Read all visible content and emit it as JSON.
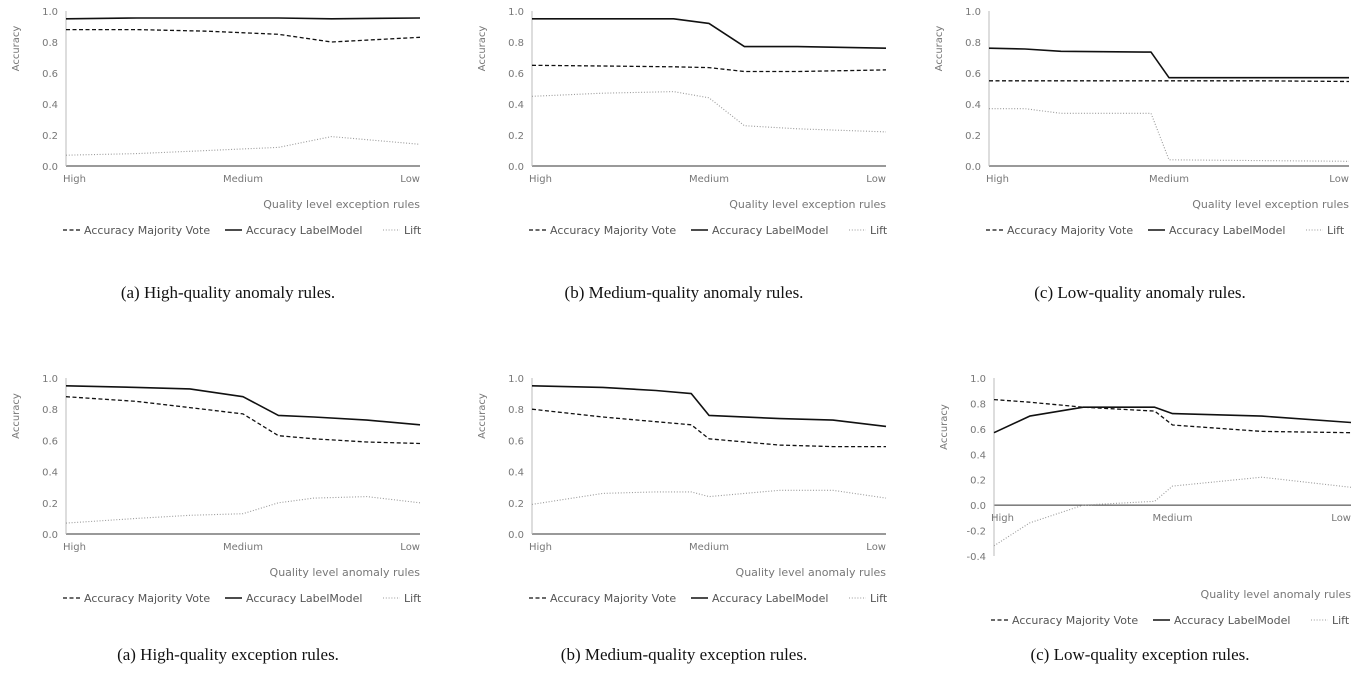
{
  "legend_labels": [
    "Accuracy Majority Vote",
    "Accuracy LabelModel",
    "Lift"
  ],
  "chart_data": [
    {
      "type": "line",
      "panel": "top-left",
      "caption": "(a) High-quality anomaly rules.",
      "ylabel": "Accuracy",
      "xlabel": "Quality level exception rules",
      "xticks": [
        "High",
        "Medium",
        "Low"
      ],
      "ylim": [
        0.0,
        1.0
      ],
      "yticks": [
        "0.0",
        "0.2",
        "0.4",
        "0.6",
        "0.8",
        "1.0"
      ],
      "x": [
        0,
        0.2,
        0.4,
        0.6,
        0.75,
        1.0
      ],
      "series": [
        {
          "name": "Accuracy Majority Vote",
          "style": "dashed",
          "values": [
            0.88,
            0.88,
            0.87,
            0.85,
            0.8,
            0.83
          ]
        },
        {
          "name": "Accuracy LabelModel",
          "style": "solid",
          "values": [
            0.95,
            0.955,
            0.955,
            0.955,
            0.95,
            0.955
          ]
        },
        {
          "name": "Lift",
          "style": "dotted",
          "values": [
            0.07,
            0.08,
            0.1,
            0.12,
            0.19,
            0.14
          ]
        }
      ],
      "grid": false,
      "legend": "bottom"
    },
    {
      "type": "line",
      "panel": "top-middle",
      "caption": "(b) Medium-quality anomaly rules.",
      "ylabel": "Accuracy",
      "xlabel": "Quality level exception rules",
      "xticks": [
        "High",
        "Medium",
        "Low"
      ],
      "ylim": [
        0.0,
        1.0
      ],
      "yticks": [
        "0.0",
        "0.2",
        "0.4",
        "0.6",
        "0.8",
        "1.0"
      ],
      "x": [
        0,
        0.2,
        0.4,
        0.5,
        0.6,
        0.75,
        1.0
      ],
      "series": [
        {
          "name": "Accuracy Majority Vote",
          "style": "dashed",
          "values": [
            0.65,
            0.645,
            0.64,
            0.635,
            0.61,
            0.61,
            0.62
          ]
        },
        {
          "name": "Accuracy LabelModel",
          "style": "solid",
          "values": [
            0.95,
            0.95,
            0.95,
            0.92,
            0.77,
            0.77,
            0.76
          ]
        },
        {
          "name": "Lift",
          "style": "dotted",
          "values": [
            0.45,
            0.47,
            0.48,
            0.44,
            0.26,
            0.24,
            0.22
          ]
        }
      ],
      "grid": false,
      "legend": "bottom"
    },
    {
      "type": "line",
      "panel": "top-right",
      "caption": "(c) Low-quality anomaly rules.",
      "ylabel": "Accuracy",
      "xlabel": "Quality level exception rules",
      "xticks": [
        "High",
        "Medium",
        "Low"
      ],
      "ylim": [
        0.0,
        1.0
      ],
      "yticks": [
        "0.0",
        "0.2",
        "0.4",
        "0.6",
        "0.8",
        "1.0"
      ],
      "x": [
        0,
        0.1,
        0.2,
        0.45,
        0.5,
        0.75,
        1.0
      ],
      "series": [
        {
          "name": "Accuracy Majority Vote",
          "style": "dashed",
          "values": [
            0.55,
            0.55,
            0.55,
            0.55,
            0.55,
            0.55,
            0.545
          ]
        },
        {
          "name": "Accuracy LabelModel",
          "style": "solid",
          "values": [
            0.76,
            0.755,
            0.74,
            0.735,
            0.57,
            0.57,
            0.57
          ]
        },
        {
          "name": "Lift",
          "style": "dotted",
          "values": [
            0.37,
            0.37,
            0.34,
            0.34,
            0.04,
            0.035,
            0.03
          ]
        }
      ],
      "grid": false,
      "legend": "bottom"
    },
    {
      "type": "line",
      "panel": "bottom-left",
      "caption": "(a) High-quality exception rules.",
      "ylabel": "Accuracy",
      "xlabel": "Quality level anomaly rules",
      "xticks": [
        "High",
        "Medium",
        "Low"
      ],
      "ylim": [
        0.0,
        1.0
      ],
      "yticks": [
        "0.0",
        "0.2",
        "0.4",
        "0.6",
        "0.8",
        "1.0"
      ],
      "x": [
        0,
        0.2,
        0.35,
        0.5,
        0.6,
        0.7,
        0.85,
        1.0
      ],
      "series": [
        {
          "name": "Accuracy Majority Vote",
          "style": "dashed",
          "values": [
            0.88,
            0.85,
            0.81,
            0.77,
            0.63,
            0.61,
            0.59,
            0.58
          ]
        },
        {
          "name": "Accuracy LabelModel",
          "style": "solid",
          "values": [
            0.95,
            0.94,
            0.93,
            0.88,
            0.76,
            0.75,
            0.73,
            0.7
          ]
        },
        {
          "name": "Lift",
          "style": "dotted",
          "values": [
            0.07,
            0.1,
            0.12,
            0.13,
            0.2,
            0.23,
            0.24,
            0.2
          ]
        }
      ],
      "grid": false,
      "legend": "bottom"
    },
    {
      "type": "line",
      "panel": "bottom-middle",
      "caption": "(b) Medium-quality exception rules.",
      "ylabel": "Accuracy",
      "xlabel": "Quality level anomaly rules",
      "xticks": [
        "High",
        "Medium",
        "Low"
      ],
      "ylim": [
        0.0,
        1.0
      ],
      "yticks": [
        "0.0",
        "0.2",
        "0.4",
        "0.6",
        "0.8",
        "1.0"
      ],
      "x": [
        0,
        0.2,
        0.35,
        0.45,
        0.5,
        0.7,
        0.85,
        1.0
      ],
      "series": [
        {
          "name": "Accuracy Majority Vote",
          "style": "dashed",
          "values": [
            0.8,
            0.75,
            0.72,
            0.7,
            0.61,
            0.57,
            0.56,
            0.56
          ]
        },
        {
          "name": "Accuracy LabelModel",
          "style": "solid",
          "values": [
            0.95,
            0.94,
            0.92,
            0.9,
            0.76,
            0.74,
            0.73,
            0.69
          ]
        },
        {
          "name": "Lift",
          "style": "dotted",
          "values": [
            0.19,
            0.26,
            0.27,
            0.27,
            0.24,
            0.28,
            0.28,
            0.23
          ]
        }
      ],
      "grid": false,
      "legend": "bottom"
    },
    {
      "type": "line",
      "panel": "bottom-right",
      "caption": "(c) Low-quality exception rules.",
      "ylabel": "Accuracy",
      "xlabel": "Quality level anomaly rules",
      "xticks": [
        "High",
        "Medium",
        "Low"
      ],
      "ylim": [
        -0.4,
        1.0
      ],
      "yticks": [
        "-0.4",
        "-0.2",
        "0.0",
        "0.2",
        "0.4",
        "0.6",
        "0.8",
        "1.0"
      ],
      "x": [
        0,
        0.1,
        0.25,
        0.45,
        0.5,
        0.75,
        1.0
      ],
      "series": [
        {
          "name": "Accuracy Majority Vote",
          "style": "dashed",
          "values": [
            0.83,
            0.81,
            0.77,
            0.74,
            0.63,
            0.58,
            0.57
          ]
        },
        {
          "name": "Accuracy LabelModel",
          "style": "solid",
          "values": [
            0.57,
            0.7,
            0.77,
            0.77,
            0.72,
            0.7,
            0.65
          ]
        },
        {
          "name": "Lift",
          "style": "dotted",
          "values": [
            -0.32,
            -0.14,
            0.0,
            0.03,
            0.15,
            0.22,
            0.14
          ]
        }
      ],
      "grid": false,
      "legend": "bottom"
    }
  ]
}
